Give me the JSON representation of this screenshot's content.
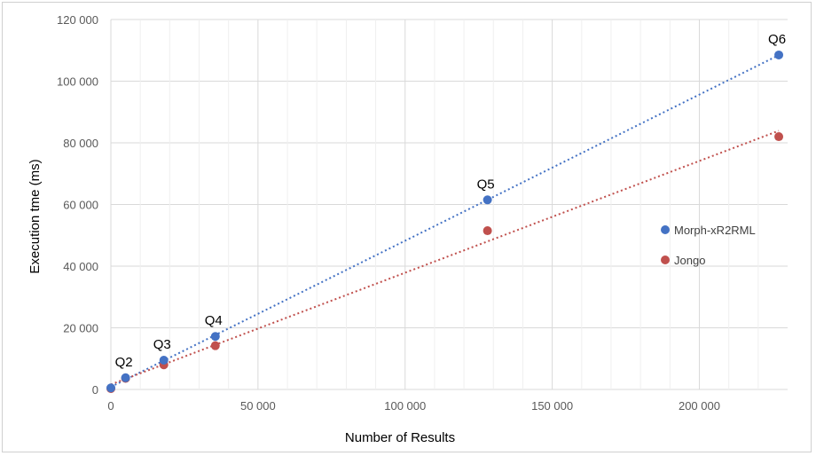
{
  "chart_data": {
    "type": "scatter",
    "xlabel": "Number of Results",
    "ylabel": "Execution tme (ms)",
    "xlim": [
      0,
      230000
    ],
    "ylim": [
      0,
      120000
    ],
    "x_ticks": [
      0,
      50000,
      100000,
      150000,
      200000
    ],
    "x_tick_labels": [
      "0",
      "50 000",
      "100 000",
      "150 000",
      "200 000"
    ],
    "y_ticks": [
      0,
      20000,
      40000,
      60000,
      80000,
      100000,
      120000
    ],
    "y_tick_labels": [
      "0",
      "20 000",
      "40 000",
      "60 000",
      "80 000",
      "100 000",
      "120 000"
    ],
    "grid": true,
    "legend_position": "right",
    "trendline": "linear, dotted",
    "series": [
      {
        "name": "Morph-xR2RML",
        "color": "#4472c4",
        "points": [
          {
            "x": 0,
            "y": 500
          },
          {
            "x": 5000,
            "y": 3800
          },
          {
            "x": 18000,
            "y": 9500
          },
          {
            "x": 35500,
            "y": 17200
          },
          {
            "x": 128000,
            "y": 61500
          },
          {
            "x": 227000,
            "y": 108500
          }
        ]
      },
      {
        "name": "Jongo",
        "color": "#c0504d",
        "points": [
          {
            "x": 0,
            "y": 300
          },
          {
            "x": 5000,
            "y": 3600
          },
          {
            "x": 18000,
            "y": 8000
          },
          {
            "x": 35500,
            "y": 14200
          },
          {
            "x": 128000,
            "y": 51500
          },
          {
            "x": 227000,
            "y": 82000
          }
        ]
      }
    ],
    "annotations": [
      {
        "text": "Q2",
        "x": 5000,
        "y": 3800
      },
      {
        "text": "Q3",
        "x": 18000,
        "y": 9500
      },
      {
        "text": "Q4",
        "x": 35500,
        "y": 17200
      },
      {
        "text": "Q5",
        "x": 128000,
        "y": 61500
      },
      {
        "text": "Q6",
        "x": 227000,
        "y": 108500
      }
    ]
  }
}
